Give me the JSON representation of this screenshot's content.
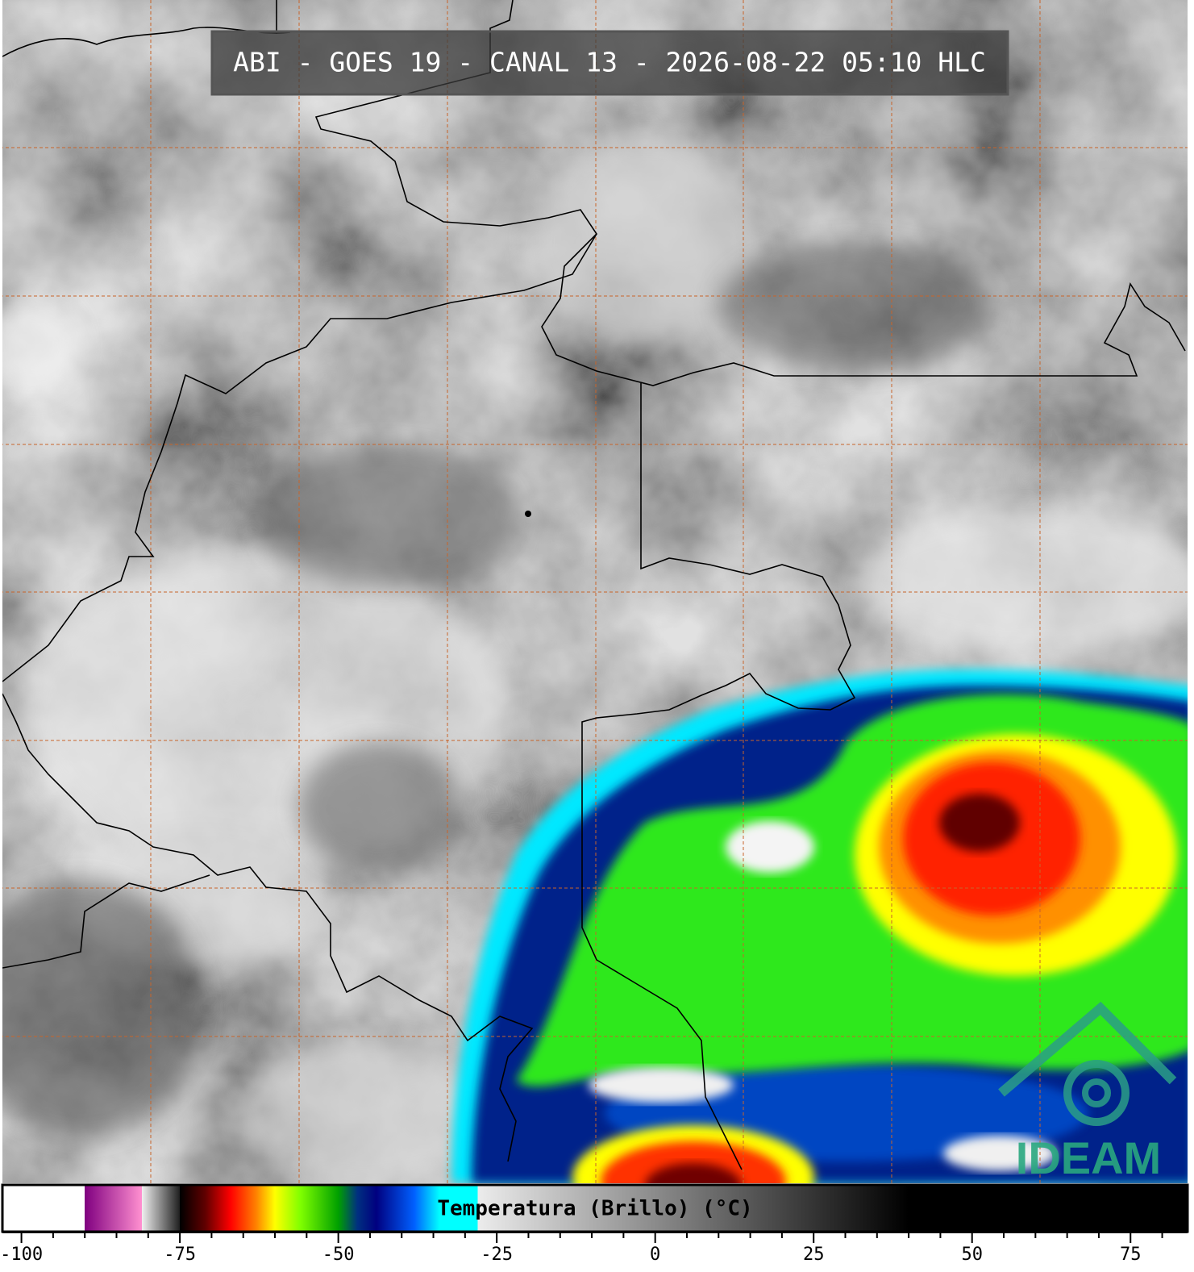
{
  "header": {
    "title": "ABI - GOES 19 - CANAL 13 - 2026-08-22 05:10 HLC"
  },
  "logo": {
    "text": "IDEAM"
  },
  "chart_data": {
    "type": "colorbar",
    "title": "Temperatura (Brillo) (°C)",
    "xlim": [
      -103,
      84
    ],
    "xticks": [
      -100,
      -75,
      -50,
      -25,
      0,
      25,
      50,
      75
    ],
    "minor_ticks": [
      -95,
      -90,
      -85,
      -80,
      -70,
      -65,
      -60,
      -55,
      -45,
      -40,
      -35,
      -30,
      -20,
      -15,
      -10,
      -5,
      5,
      10,
      15,
      20,
      30,
      35,
      40,
      45,
      55,
      60,
      65,
      70,
      80
    ],
    "colormap": [
      {
        "value": -103,
        "color": "#ffffff"
      },
      {
        "value": -90,
        "color": "#ffffff"
      },
      {
        "value": -90,
        "color": "#800080"
      },
      {
        "value": -81,
        "color": "#ff90d0"
      },
      {
        "value": -81,
        "color": "#f0f0f0"
      },
      {
        "value": -75,
        "color": "#202020"
      },
      {
        "value": -75,
        "color": "#000000"
      },
      {
        "value": -71,
        "color": "#600000"
      },
      {
        "value": -67,
        "color": "#ff0000"
      },
      {
        "value": -63,
        "color": "#ff8000"
      },
      {
        "value": -60,
        "color": "#ffff00"
      },
      {
        "value": -56,
        "color": "#80ff00"
      },
      {
        "value": -50,
        "color": "#00a000"
      },
      {
        "value": -47,
        "color": "#003080"
      },
      {
        "value": -44,
        "color": "#000080"
      },
      {
        "value": -38,
        "color": "#0060ff"
      },
      {
        "value": -34,
        "color": "#00ffff"
      },
      {
        "value": -28,
        "color": "#00ffff"
      },
      {
        "value": -28,
        "color": "#ececec"
      },
      {
        "value": 40,
        "color": "#000000"
      },
      {
        "value": 84,
        "color": "#000000"
      }
    ]
  }
}
